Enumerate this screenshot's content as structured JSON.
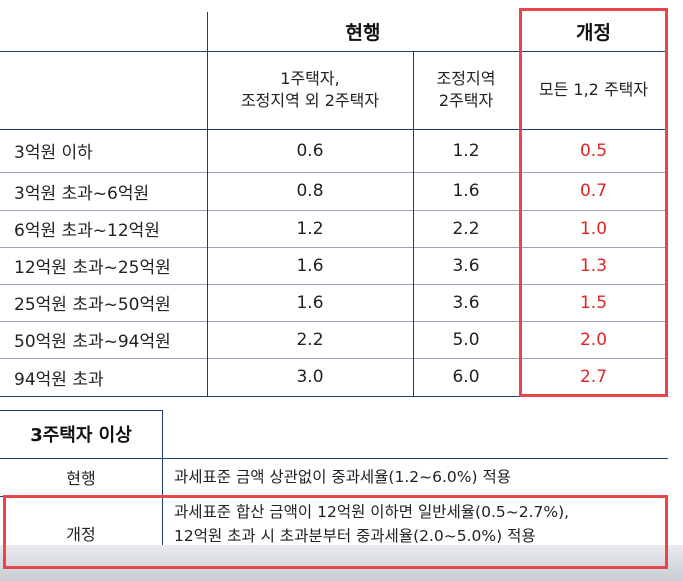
{
  "table": {
    "header_group_current": "현행",
    "header_group_revised": "개정",
    "col1_line1": "1주택자,",
    "col1_line2": "조정지역 외 2주택자",
    "col2_line1": "조정지역",
    "col2_line2": "2주택자",
    "col3": "모든 1,2 주택자",
    "rows": [
      {
        "label": "3억원 이하",
        "c1": "0.6",
        "c2": "1.2",
        "c3": "0.5"
      },
      {
        "label": "3억원 초과~6억원",
        "c1": "0.8",
        "c2": "1.6",
        "c3": "0.7"
      },
      {
        "label": "6억원 초과~12억원",
        "c1": "1.2",
        "c2": "2.2",
        "c3": "1.0"
      },
      {
        "label": "12억원 초과~25억원",
        "c1": "1.6",
        "c2": "3.6",
        "c3": "1.3"
      },
      {
        "label": "25억원 초과~50억원",
        "c1": "1.6",
        "c2": "3.6",
        "c3": "1.5"
      },
      {
        "label": "50억원 초과~94억원",
        "c1": "2.2",
        "c2": "5.0",
        "c3": "2.0"
      },
      {
        "label": "94억원 초과",
        "c1": "3.0",
        "c2": "6.0",
        "c3": "2.7"
      }
    ]
  },
  "section2": {
    "title": "3주택자 이상",
    "current_label": "현행",
    "current_text": "과세표준 금액 상관없이 중과세율(1.2~6.0%) 적용",
    "revised_label": "개정",
    "revised_line1": "과세표준 합산 금액이 12억원 이하면 일반세율(0.5~2.7%),",
    "revised_line2": "12억원 초과 시 초과분부터 중과세율(2.0~5.0%) 적용"
  },
  "colors": {
    "line": "#1f3a6e",
    "highlight_box": "#e8464a",
    "highlight_text": "#e02424"
  }
}
